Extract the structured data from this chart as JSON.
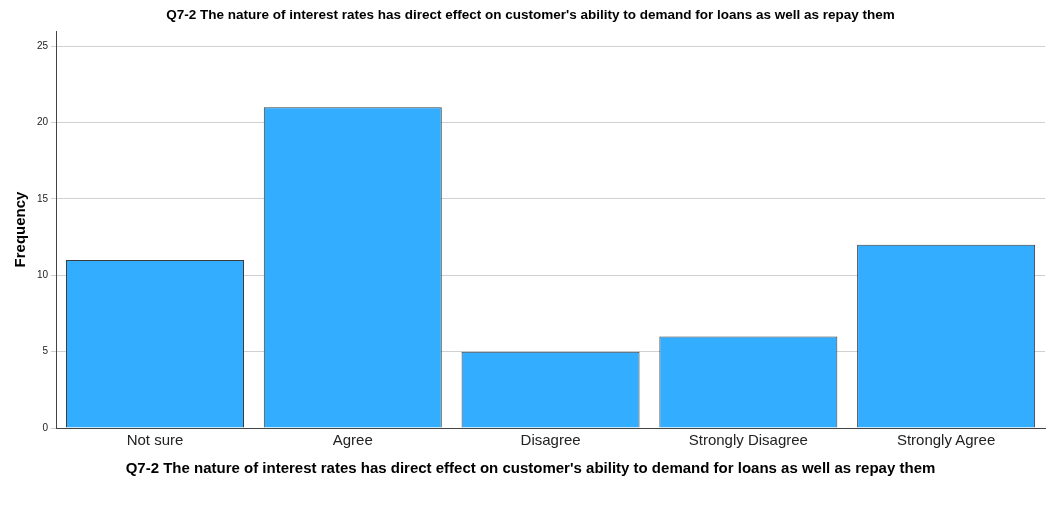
{
  "chart_data": {
    "type": "bar",
    "title": "Q7-2 The nature of interest rates has direct effect on customer's ability to demand for loans as well as repay them",
    "xlabel": "Q7-2 The nature of interest rates has direct effect on customer's ability to demand for loans as well as repay them",
    "ylabel": "Frequency",
    "categories": [
      "Not sure",
      "Agree",
      "Disagree",
      "Strongly Disagree",
      "Strongly Agree"
    ],
    "values": [
      11,
      21,
      5,
      6,
      12
    ],
    "color": "#33adff",
    "ylim": [
      0,
      26
    ],
    "yticks": [
      0,
      5,
      10,
      15,
      20,
      25
    ],
    "grid": "y"
  }
}
